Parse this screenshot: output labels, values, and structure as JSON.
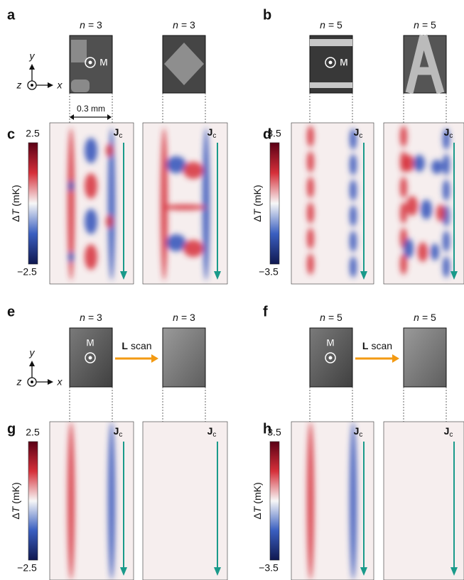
{
  "panels": [
    {
      "letter": "a",
      "axes": {
        "y": "y",
        "z": "z",
        "x": "x"
      },
      "scale": "0.3 mm",
      "images": [
        {
          "var": "n",
          "eq": "= 3",
          "marker": "M"
        },
        {
          "var": "n",
          "eq": "= 3"
        }
      ]
    },
    {
      "letter": "b",
      "images": [
        {
          "var": "n",
          "eq": "= 5",
          "marker": "M"
        },
        {
          "var": "n",
          "eq": "= 5"
        }
      ]
    },
    {
      "letter": "c",
      "colorbar": {
        "max": "2.5",
        "min": "−2.5",
        "symbol": "Δ",
        "var": "T",
        "unit": "(mK)"
      },
      "maps": [
        {
          "symbol": "J",
          "sub": "c"
        },
        {
          "symbol": "J",
          "sub": "c"
        }
      ]
    },
    {
      "letter": "d",
      "colorbar": {
        "max": "3.5",
        "min": "−3.5",
        "symbol": "Δ",
        "var": "T",
        "unit": "(mK)"
      },
      "maps": [
        {
          "symbol": "J",
          "sub": "c"
        },
        {
          "symbol": "J",
          "sub": "c"
        }
      ]
    },
    {
      "letter": "e",
      "axes": {
        "y": "y",
        "z": "z",
        "x": "x"
      },
      "arrow": {
        "symbol": "L",
        "text": "scan"
      },
      "images": [
        {
          "var": "n",
          "eq": "= 3",
          "marker": "M"
        },
        {
          "var": "n",
          "eq": "= 3"
        }
      ]
    },
    {
      "letter": "f",
      "arrow": {
        "symbol": "L",
        "text": "scan"
      },
      "images": [
        {
          "var": "n",
          "eq": "= 5",
          "marker": "M"
        },
        {
          "var": "n",
          "eq": "= 5"
        }
      ]
    },
    {
      "letter": "g",
      "colorbar": {
        "max": "2.5",
        "min": "−2.5",
        "symbol": "Δ",
        "var": "T",
        "unit": "(mK)"
      },
      "maps": [
        {
          "symbol": "J",
          "sub": "c"
        },
        {
          "symbol": "J",
          "sub": "c"
        }
      ]
    },
    {
      "letter": "h",
      "colorbar": {
        "max": "3.5",
        "min": "−3.5",
        "symbol": "Δ",
        "var": "T",
        "unit": "(mK)"
      },
      "maps": [
        {
          "symbol": "J",
          "sub": "c"
        },
        {
          "symbol": "J",
          "sub": "c"
        }
      ]
    }
  ]
}
